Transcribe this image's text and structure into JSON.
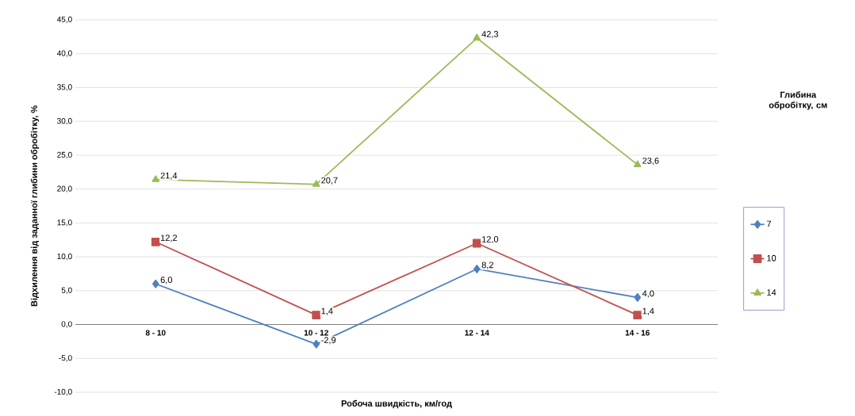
{
  "chart_data": {
    "type": "line",
    "xlabel": "Робоча швидкість, км/год",
    "ylabel": "Відхилення від заданної глибини обробітку, %",
    "legend_title": "Глибина обробітку, см",
    "categories": [
      "8 - 10",
      "10 - 12",
      "12 - 14",
      "14 - 16"
    ],
    "series": [
      {
        "name": "7",
        "color": "#4f81bd",
        "marker": "diamond",
        "values": [
          6.0,
          -2.9,
          8.2,
          4.0
        ],
        "value_labels": [
          "6,0",
          "-2,9",
          "8,2",
          "4,0"
        ]
      },
      {
        "name": "10",
        "color": "#c0504d",
        "marker": "square",
        "values": [
          12.2,
          1.4,
          12.0,
          1.4
        ],
        "value_labels": [
          "12,2",
          "1,4",
          "12,0",
          "1,4"
        ]
      },
      {
        "name": "14",
        "color": "#9bbb59",
        "marker": "triangle",
        "values": [
          21.4,
          20.7,
          42.3,
          23.6
        ],
        "value_labels": [
          "21,4",
          "20,7",
          "42,3",
          "23,6"
        ]
      }
    ],
    "ylim": [
      -10,
      45
    ],
    "yticks": [
      {
        "value": -10,
        "label": "-10,0"
      },
      {
        "value": -5,
        "label": "-5,0"
      },
      {
        "value": 0,
        "label": "0,0"
      },
      {
        "value": 5,
        "label": "5,0"
      },
      {
        "value": 10,
        "label": "10,0"
      },
      {
        "value": 15,
        "label": "15,0"
      },
      {
        "value": 20,
        "label": "20,0"
      },
      {
        "value": 25,
        "label": "25,0"
      },
      {
        "value": 30,
        "label": "30,0"
      },
      {
        "value": 35,
        "label": "35,0"
      },
      {
        "value": 40,
        "label": "40,0"
      },
      {
        "value": 45,
        "label": "45,0"
      }
    ],
    "grid": "y",
    "legend": "right",
    "line_style": "solid"
  }
}
